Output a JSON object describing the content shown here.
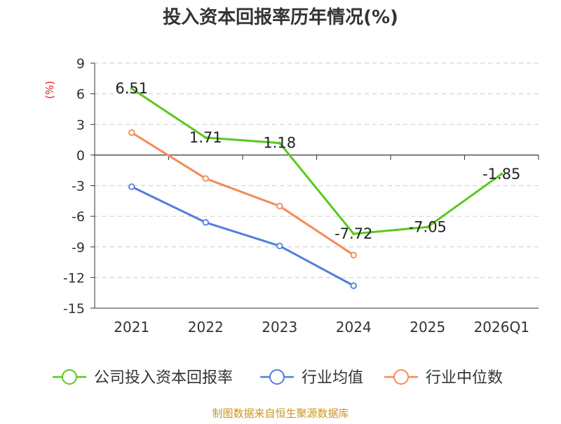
{
  "chart_data": {
    "type": "line",
    "title": "投入资本回报率历年情况(%)",
    "ylabel": "(%)",
    "xlabel": "",
    "categories": [
      "2021",
      "2022",
      "2023",
      "2024",
      "2025",
      "2026Q1"
    ],
    "ylim": [
      -15,
      9
    ],
    "yticks": [
      9,
      6,
      3,
      0,
      -3,
      -6,
      -9,
      -12,
      -15
    ],
    "grid": true,
    "legend_position": "bottom",
    "series": [
      {
        "name": "公司投入资本回报率",
        "color": "#5ac820",
        "values": [
          6.51,
          1.71,
          1.18,
          -7.72,
          -7.05,
          -1.85
        ],
        "labels": [
          "6.51",
          "1.71",
          "1.18",
          "-7.72",
          "-7.05",
          "-1.85"
        ],
        "show_labels": true,
        "show_markers": false
      },
      {
        "name": "行业均值",
        "color": "#4f7fde",
        "values": [
          -3.1,
          -6.6,
          -8.9,
          -12.8,
          null,
          null
        ],
        "show_labels": false,
        "show_markers": true
      },
      {
        "name": "行业中位数",
        "color": "#f28c55",
        "values": [
          2.2,
          -2.3,
          -5.0,
          -9.8,
          null,
          null
        ],
        "show_labels": false,
        "show_markers": true
      }
    ]
  },
  "source": "制图数据来自恒生聚源数据库",
  "colors": {
    "title": "#333333",
    "axis": "#333333",
    "grid": "#cccccc",
    "ylabel": "#e02020",
    "source": "#c8961e"
  }
}
